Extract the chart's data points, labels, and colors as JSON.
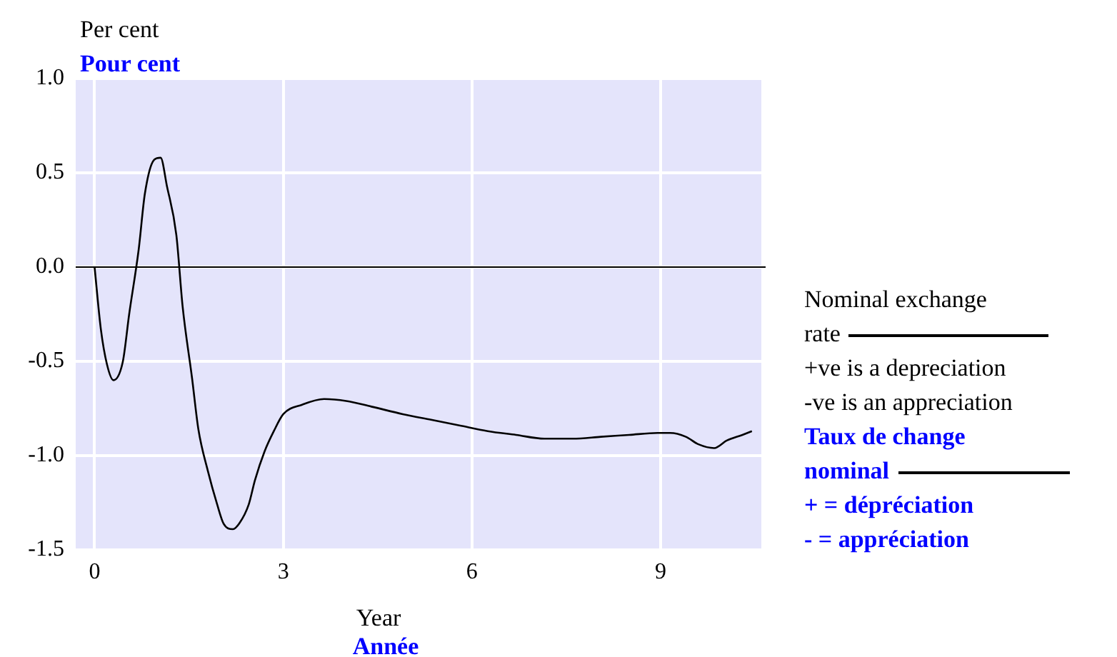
{
  "chart_data": {
    "type": "line",
    "ylabel": "Per cent",
    "xlabel": "Year",
    "annotations": [
      "Pour cent",
      "Année",
      "+ve is a depreciation",
      "-ve is an appreciation",
      "Taux de change nominal",
      "+ = dépréciation",
      "- = appréciation"
    ],
    "series": [
      {
        "name": "Nominal exchange rate",
        "color": "#000000",
        "x": [
          0,
          0.1,
          0.2,
          0.3,
          0.45,
          0.55,
          0.7,
          0.8,
          0.95,
          1.05,
          1.15,
          1.3,
          1.4,
          1.55,
          1.65,
          1.8,
          1.95,
          2.05,
          2.2,
          2.3,
          2.45,
          2.55,
          2.7,
          2.85,
          3.0,
          3.3,
          3.65,
          4.0,
          4.4,
          4.9,
          5.35,
          5.8,
          6.25,
          6.7,
          7.15,
          7.6,
          8.05,
          8.5,
          8.95,
          9.15,
          9.4,
          9.6,
          9.85,
          10.05,
          10.3,
          10.45
        ],
        "values": [
          0,
          -0.33,
          -0.52,
          -0.6,
          -0.5,
          -0.25,
          0.09,
          0.39,
          0.57,
          0.58,
          0.43,
          0.17,
          -0.21,
          -0.59,
          -0.86,
          -1.08,
          -1.26,
          -1.36,
          -1.39,
          -1.36,
          -1.26,
          -1.13,
          -0.98,
          -0.87,
          -0.78,
          -0.73,
          -0.7,
          -0.71,
          -0.74,
          -0.78,
          -0.81,
          -0.84,
          -0.87,
          -0.89,
          -0.91,
          -0.91,
          -0.9,
          -0.89,
          -0.88,
          -0.88,
          -0.9,
          -0.94,
          -0.96,
          -0.92,
          -0.89,
          -0.87
        ]
      }
    ],
    "xlim": [
      -0.3,
      10.6
    ],
    "xticks": [
      0,
      3,
      6,
      9
    ],
    "ylim": [
      -1.5,
      1.0
    ],
    "yticks": [
      {
        "value": -1.5,
        "label": "-1.5"
      },
      {
        "value": -1.0,
        "label": "-1.0"
      },
      {
        "value": -0.5,
        "label": "-0.5"
      },
      {
        "value": 0,
        "label": "0.0"
      },
      {
        "value": 0.5,
        "label": "0.5"
      },
      {
        "value": 1.0,
        "label": "1.0"
      }
    ],
    "ref_lines": [
      {
        "axis": "y",
        "value": 0,
        "color": "#000000"
      }
    ],
    "grid": true,
    "legend": "right"
  }
}
